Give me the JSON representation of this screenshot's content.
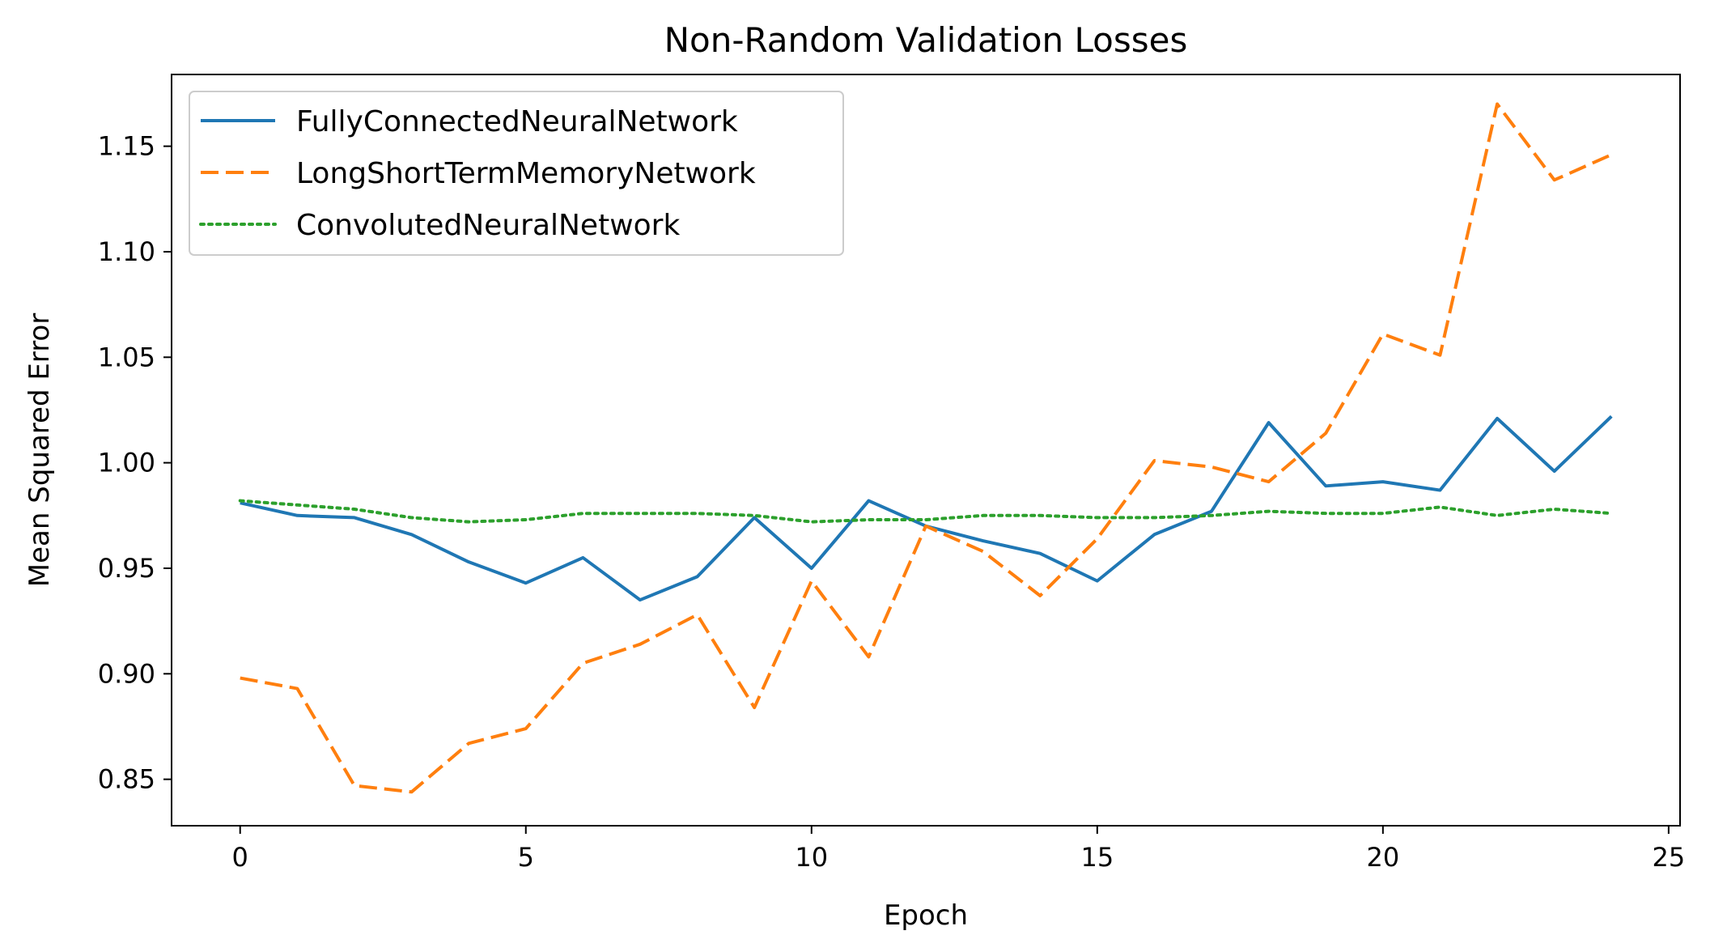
{
  "chart_data": {
    "type": "line",
    "title": "Non-Random Validation Losses",
    "xlabel": "Epoch",
    "ylabel": "Mean Squared Error",
    "xlim": [
      -1.2,
      25.2
    ],
    "ylim": [
      0.828,
      1.184
    ],
    "xticks": [
      0,
      5,
      10,
      15,
      20,
      25
    ],
    "xtick_labels": [
      "0",
      "5",
      "10",
      "15",
      "20",
      "25"
    ],
    "yticks": [
      0.85,
      0.9,
      0.95,
      1.0,
      1.05,
      1.1,
      1.15
    ],
    "ytick_labels": [
      "0.85",
      "0.90",
      "0.95",
      "1.00",
      "1.05",
      "1.10",
      "1.15"
    ],
    "grid": false,
    "legend_position": "top-left",
    "x": [
      0,
      1,
      2,
      3,
      4,
      5,
      6,
      7,
      8,
      9,
      10,
      11,
      12,
      13,
      14,
      15,
      16,
      17,
      18,
      19,
      20,
      21,
      22,
      23,
      24
    ],
    "series": [
      {
        "name": "FullyConnectedNeuralNetwork",
        "color": "#1f77b4",
        "dash": "solid",
        "values": [
          0.981,
          0.975,
          0.974,
          0.966,
          0.953,
          0.943,
          0.955,
          0.935,
          0.946,
          0.974,
          0.95,
          0.982,
          0.97,
          0.963,
          0.957,
          0.944,
          0.966,
          0.977,
          1.019,
          0.989,
          0.991,
          0.987,
          1.021,
          0.996,
          1.022
        ]
      },
      {
        "name": "LongShortTermMemoryNetwork",
        "color": "#ff7f0e",
        "dash": "dashed",
        "values": [
          0.898,
          0.893,
          0.847,
          0.844,
          0.867,
          0.874,
          0.905,
          0.914,
          0.928,
          0.884,
          0.944,
          0.908,
          0.97,
          0.958,
          0.937,
          0.964,
          1.001,
          0.998,
          0.991,
          1.014,
          1.061,
          1.051,
          1.17,
          1.134,
          1.146
        ]
      },
      {
        "name": "ConvolutedNeuralNetwork",
        "color": "#2ca02c",
        "dash": "dotted",
        "values": [
          0.982,
          0.98,
          0.978,
          0.974,
          0.972,
          0.973,
          0.976,
          0.976,
          0.976,
          0.975,
          0.972,
          0.973,
          0.973,
          0.975,
          0.975,
          0.974,
          0.974,
          0.975,
          0.977,
          0.976,
          0.976,
          0.979,
          0.975,
          0.978,
          0.976
        ]
      }
    ]
  }
}
